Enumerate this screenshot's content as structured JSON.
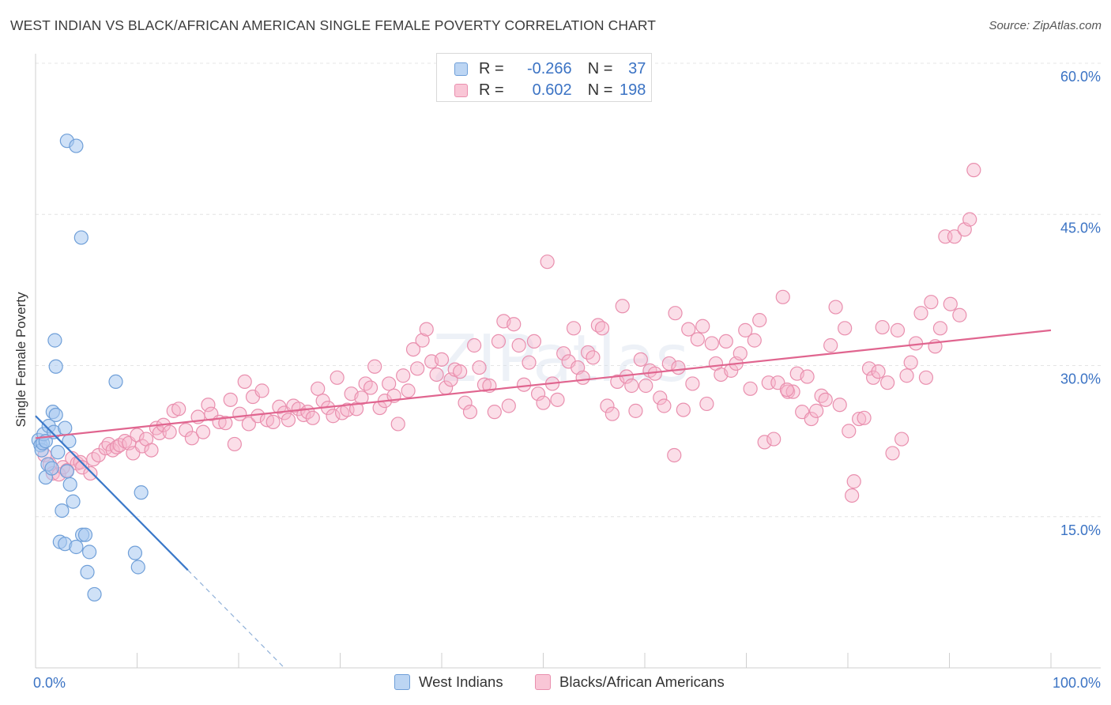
{
  "title": "WEST INDIAN VS BLACK/AFRICAN AMERICAN SINGLE FEMALE POVERTY CORRELATION CHART",
  "source": "Source: ZipAtlas.com",
  "watermark": "ZIPatlas",
  "legend": {
    "rows": [
      {
        "r_label": "R =",
        "r_value": "-0.266",
        "n_label": "N =",
        "n_value": "37"
      },
      {
        "r_label": "R =",
        "r_value": "0.602",
        "n_label": "N =",
        "n_value": "198"
      }
    ],
    "bottom": [
      "West Indians",
      "Blacks/African Americans"
    ]
  },
  "colors": {
    "blue_fill": "#a8c8f0",
    "blue_stroke": "#6f9fd8",
    "blue_line": "#3a78c9",
    "pink_fill": "#f7b6cb",
    "pink_stroke": "#e98fae",
    "pink_line": "#e0658f",
    "tick_text": "#3b73c4"
  },
  "chart_data": {
    "type": "scatter",
    "title": "WEST INDIAN VS BLACK/AFRICAN AMERICAN SINGLE FEMALE POVERTY CORRELATION CHART",
    "xlabel": "",
    "ylabel": "Single Female Poverty",
    "xlim": [
      0,
      100
    ],
    "ylim": [
      0,
      60
    ],
    "x_tick_labels": [
      "0.0%",
      "100.0%"
    ],
    "y_ticks": [
      {
        "value": 15,
        "label": "15.0%"
      },
      {
        "value": 30,
        "label": "30.0%"
      },
      {
        "value": 45,
        "label": "45.0%"
      },
      {
        "value": 60,
        "label": "60.0%"
      }
    ],
    "series": [
      {
        "name": "West Indians",
        "r": -0.266,
        "n": 37,
        "trend": {
          "x0": 0,
          "y0": 25.0,
          "x1": 15,
          "y1": 9.7,
          "dash_to_x": 24.5,
          "dash_to_y": 0
        },
        "points": [
          [
            0.3,
            22.6
          ],
          [
            0.5,
            22.1
          ],
          [
            0.6,
            21.6
          ],
          [
            0.7,
            22.3
          ],
          [
            0.8,
            23.2
          ],
          [
            1.0,
            22.5
          ],
          [
            1.2,
            20.2
          ],
          [
            1.3,
            24.0
          ],
          [
            1.0,
            18.9
          ],
          [
            1.6,
            19.8
          ],
          [
            1.8,
            23.4
          ],
          [
            1.7,
            25.4
          ],
          [
            2.0,
            25.1
          ],
          [
            2.2,
            21.4
          ],
          [
            1.9,
            32.5
          ],
          [
            2.0,
            29.9
          ],
          [
            2.9,
            23.8
          ],
          [
            3.3,
            22.5
          ],
          [
            3.4,
            18.2
          ],
          [
            3.1,
            19.5
          ],
          [
            3.7,
            16.5
          ],
          [
            2.6,
            15.6
          ],
          [
            2.4,
            12.5
          ],
          [
            2.9,
            12.3
          ],
          [
            4.0,
            12.0
          ],
          [
            4.6,
            13.2
          ],
          [
            4.9,
            13.2
          ],
          [
            5.3,
            11.5
          ],
          [
            5.1,
            9.5
          ],
          [
            5.8,
            7.3
          ],
          [
            7.9,
            28.4
          ],
          [
            3.1,
            52.3
          ],
          [
            4.0,
            51.8
          ],
          [
            4.5,
            42.7
          ],
          [
            9.8,
            11.4
          ],
          [
            10.1,
            10.0
          ],
          [
            10.4,
            17.4
          ]
        ]
      },
      {
        "name": "Blacks/African Americans",
        "r": 0.602,
        "n": 198,
        "trend": {
          "x0": 0,
          "y0": 22.8,
          "x1": 100,
          "y1": 33.5
        },
        "points": [
          [
            0.9,
            21.1
          ],
          [
            1.4,
            20.2
          ],
          [
            1.7,
            19.3
          ],
          [
            2.3,
            19.2
          ],
          [
            2.7,
            19.9
          ],
          [
            3.1,
            19.6
          ],
          [
            3.6,
            20.8
          ],
          [
            4.1,
            20.3
          ],
          [
            4.4,
            20.4
          ],
          [
            4.6,
            19.9
          ],
          [
            5.4,
            19.3
          ],
          [
            5.7,
            20.7
          ],
          [
            6.2,
            21.1
          ],
          [
            6.9,
            21.8
          ],
          [
            7.2,
            22.2
          ],
          [
            7.6,
            21.6
          ],
          [
            8.0,
            21.9
          ],
          [
            8.3,
            22.1
          ],
          [
            8.8,
            22.5
          ],
          [
            9.2,
            22.3
          ],
          [
            9.6,
            21.3
          ],
          [
            10.0,
            23.1
          ],
          [
            10.5,
            22.0
          ],
          [
            10.9,
            22.7
          ],
          [
            11.4,
            21.6
          ],
          [
            11.9,
            23.8
          ],
          [
            12.2,
            23.3
          ],
          [
            12.6,
            24.1
          ],
          [
            13.2,
            23.4
          ],
          [
            13.6,
            25.5
          ],
          [
            14.1,
            25.7
          ],
          [
            14.8,
            23.6
          ],
          [
            15.4,
            22.8
          ],
          [
            16.0,
            24.9
          ],
          [
            16.5,
            23.4
          ],
          [
            17.0,
            26.1
          ],
          [
            17.3,
            25.2
          ],
          [
            18.1,
            24.4
          ],
          [
            18.7,
            24.3
          ],
          [
            19.2,
            26.6
          ],
          [
            19.6,
            22.2
          ],
          [
            20.1,
            25.2
          ],
          [
            20.6,
            28.4
          ],
          [
            21.0,
            24.2
          ],
          [
            21.4,
            26.9
          ],
          [
            21.9,
            25.0
          ],
          [
            22.3,
            27.5
          ],
          [
            22.8,
            24.6
          ],
          [
            23.4,
            24.4
          ],
          [
            24.0,
            25.9
          ],
          [
            24.5,
            25.3
          ],
          [
            24.9,
            24.6
          ],
          [
            25.4,
            26.0
          ],
          [
            25.9,
            25.7
          ],
          [
            26.4,
            25.1
          ],
          [
            26.8,
            25.4
          ],
          [
            27.3,
            24.8
          ],
          [
            27.8,
            27.7
          ],
          [
            28.3,
            26.5
          ],
          [
            28.8,
            25.8
          ],
          [
            29.3,
            25.0
          ],
          [
            29.7,
            28.8
          ],
          [
            30.2,
            25.3
          ],
          [
            30.7,
            25.6
          ],
          [
            31.1,
            27.2
          ],
          [
            31.6,
            25.7
          ],
          [
            32.1,
            26.8
          ],
          [
            32.5,
            28.2
          ],
          [
            33.0,
            27.8
          ],
          [
            33.4,
            29.9
          ],
          [
            33.9,
            25.8
          ],
          [
            34.4,
            26.5
          ],
          [
            34.8,
            28.2
          ],
          [
            35.3,
            27.0
          ],
          [
            35.7,
            24.2
          ],
          [
            36.2,
            29.0
          ],
          [
            36.7,
            27.5
          ],
          [
            37.2,
            31.6
          ],
          [
            37.6,
            29.7
          ],
          [
            38.1,
            32.5
          ],
          [
            38.5,
            33.6
          ],
          [
            39.0,
            30.4
          ],
          [
            39.5,
            29.1
          ],
          [
            40.0,
            30.6
          ],
          [
            40.4,
            27.8
          ],
          [
            40.9,
            28.6
          ],
          [
            41.3,
            29.6
          ],
          [
            41.8,
            29.4
          ],
          [
            42.3,
            26.3
          ],
          [
            42.8,
            25.4
          ],
          [
            43.2,
            32.0
          ],
          [
            43.7,
            29.8
          ],
          [
            44.2,
            28.1
          ],
          [
            44.7,
            28.0
          ],
          [
            45.2,
            25.4
          ],
          [
            45.6,
            32.4
          ],
          [
            46.1,
            34.4
          ],
          [
            46.6,
            26.0
          ],
          [
            47.1,
            34.1
          ],
          [
            47.6,
            32.0
          ],
          [
            48.1,
            28.1
          ],
          [
            48.6,
            30.3
          ],
          [
            49.1,
            32.4
          ],
          [
            49.5,
            27.2
          ],
          [
            50.0,
            26.3
          ],
          [
            50.4,
            40.3
          ],
          [
            50.9,
            28.2
          ],
          [
            51.4,
            26.6
          ],
          [
            52.0,
            31.2
          ],
          [
            52.5,
            30.4
          ],
          [
            53.0,
            33.7
          ],
          [
            53.4,
            29.8
          ],
          [
            53.9,
            28.8
          ],
          [
            54.4,
            31.3
          ],
          [
            54.9,
            30.8
          ],
          [
            55.4,
            34.0
          ],
          [
            55.8,
            33.7
          ],
          [
            56.3,
            26.0
          ],
          [
            56.8,
            25.2
          ],
          [
            57.3,
            28.4
          ],
          [
            57.8,
            35.9
          ],
          [
            58.2,
            28.9
          ],
          [
            58.7,
            28.0
          ],
          [
            59.1,
            25.5
          ],
          [
            59.6,
            30.6
          ],
          [
            60.1,
            28.0
          ],
          [
            60.5,
            29.5
          ],
          [
            61.0,
            29.2
          ],
          [
            61.5,
            26.8
          ],
          [
            61.9,
            26.0
          ],
          [
            62.4,
            30.2
          ],
          [
            62.9,
            21.1
          ],
          [
            63.3,
            29.8
          ],
          [
            63.8,
            25.6
          ],
          [
            64.3,
            33.6
          ],
          [
            64.7,
            28.2
          ],
          [
            65.2,
            32.6
          ],
          [
            65.7,
            33.9
          ],
          [
            66.1,
            26.2
          ],
          [
            66.6,
            32.2
          ],
          [
            67.0,
            30.2
          ],
          [
            67.5,
            29.1
          ],
          [
            68.0,
            32.4
          ],
          [
            68.5,
            29.5
          ],
          [
            69.0,
            30.2
          ],
          [
            69.4,
            31.2
          ],
          [
            69.9,
            33.5
          ],
          [
            70.4,
            27.7
          ],
          [
            70.8,
            32.5
          ],
          [
            71.3,
            34.5
          ],
          [
            71.8,
            22.4
          ],
          [
            72.2,
            28.3
          ],
          [
            72.7,
            22.7
          ],
          [
            73.1,
            28.3
          ],
          [
            73.6,
            36.8
          ],
          [
            74.1,
            27.4
          ],
          [
            74.6,
            27.4
          ],
          [
            75.0,
            29.2
          ],
          [
            75.5,
            25.4
          ],
          [
            76.0,
            28.9
          ],
          [
            76.4,
            24.7
          ],
          [
            76.9,
            25.5
          ],
          [
            77.4,
            27.0
          ],
          [
            77.8,
            26.6
          ],
          [
            78.3,
            32.0
          ],
          [
            78.8,
            35.8
          ],
          [
            79.2,
            26.1
          ],
          [
            79.7,
            33.7
          ],
          [
            80.1,
            23.5
          ],
          [
            80.6,
            18.5
          ],
          [
            81.1,
            24.7
          ],
          [
            81.6,
            24.8
          ],
          [
            82.1,
            29.7
          ],
          [
            82.5,
            28.8
          ],
          [
            83.0,
            29.4
          ],
          [
            83.4,
            33.8
          ],
          [
            83.9,
            28.3
          ],
          [
            84.4,
            21.3
          ],
          [
            84.9,
            33.5
          ],
          [
            85.3,
            22.7
          ],
          [
            85.8,
            29.0
          ],
          [
            86.2,
            30.3
          ],
          [
            86.7,
            32.2
          ],
          [
            87.2,
            35.2
          ],
          [
            87.7,
            28.8
          ],
          [
            88.2,
            36.3
          ],
          [
            88.6,
            31.9
          ],
          [
            89.1,
            33.7
          ],
          [
            89.6,
            42.8
          ],
          [
            90.1,
            36.1
          ],
          [
            90.5,
            42.8
          ],
          [
            91.0,
            35.0
          ],
          [
            91.5,
            43.5
          ],
          [
            92.0,
            44.5
          ],
          [
            92.4,
            49.4
          ],
          [
            80.4,
            17.1
          ],
          [
            74.0,
            27.6
          ],
          [
            63.0,
            35.2
          ]
        ]
      }
    ]
  }
}
